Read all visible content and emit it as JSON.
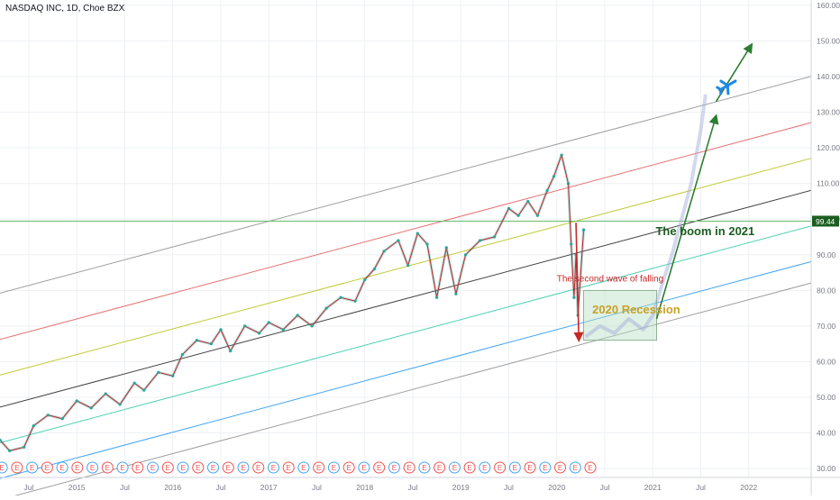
{
  "chart_data": {
    "type": "line",
    "title": "NASDAQ INC, 1D, Choe BZX",
    "xlabel": "",
    "ylabel": "",
    "xlim": [
      2014.2,
      2022.65
    ],
    "ylim": [
      27.5,
      161.5
    ],
    "y_ticks": [
      30,
      40,
      50,
      60,
      70,
      80,
      90,
      100,
      110,
      120,
      130,
      140,
      150,
      160
    ],
    "y_tick_labels": [
      "30.00",
      "40.00",
      "50.00",
      "60.00",
      "70.00",
      "80.00",
      "90.00",
      "100.00",
      "110.00",
      "120.00",
      "130.00",
      "140.00",
      "150.00",
      "160.00"
    ],
    "x_ticks": [
      {
        "label": "Jul",
        "x": 2014.5
      },
      {
        "label": "2015",
        "x": 2015.0
      },
      {
        "label": "Jul",
        "x": 2015.5
      },
      {
        "label": "2016",
        "x": 2016.0
      },
      {
        "label": "Jul",
        "x": 2016.5
      },
      {
        "label": "2017",
        "x": 2017.0
      },
      {
        "label": "Jul",
        "x": 2017.5
      },
      {
        "label": "2018",
        "x": 2018.0
      },
      {
        "label": "Jul",
        "x": 2018.5
      },
      {
        "label": "2019",
        "x": 2019.0
      },
      {
        "label": "Jul",
        "x": 2019.5
      },
      {
        "label": "2020",
        "x": 2020.0
      },
      {
        "label": "Jul",
        "x": 2020.5
      },
      {
        "label": "2021",
        "x": 2021.0
      },
      {
        "label": "Jul",
        "x": 2021.5
      },
      {
        "label": "2022",
        "x": 2022.0
      }
    ],
    "grid": true,
    "price_series": {
      "x": [
        2014.2,
        2014.3,
        2014.45,
        2014.55,
        2014.7,
        2014.85,
        2015.0,
        2015.15,
        2015.3,
        2015.45,
        2015.6,
        2015.7,
        2015.85,
        2016.0,
        2016.1,
        2016.25,
        2016.4,
        2016.5,
        2016.6,
        2016.75,
        2016.9,
        2017.0,
        2017.15,
        2017.3,
        2017.45,
        2017.6,
        2017.75,
        2017.9,
        2018.0,
        2018.1,
        2018.2,
        2018.35,
        2018.45,
        2018.55,
        2018.65,
        2018.75,
        2018.85,
        2018.95,
        2019.05,
        2019.2,
        2019.35,
        2019.5,
        2019.6,
        2019.7,
        2019.8,
        2019.9,
        2019.97,
        2020.05,
        2020.12,
        2020.15,
        2020.18,
        2020.2,
        2020.22,
        2020.28
      ],
      "y": [
        38,
        35,
        36,
        42,
        45,
        44,
        49,
        47,
        51,
        48,
        54,
        52,
        57,
        56,
        62,
        66,
        65,
        69,
        63,
        70,
        68,
        71,
        69,
        73,
        70,
        75,
        78,
        77,
        83,
        86,
        91,
        94,
        87,
        96,
        93,
        78,
        92,
        79,
        90,
        94,
        95,
        103,
        101,
        105,
        101,
        108,
        112,
        118,
        110,
        93,
        78,
        90,
        73,
        97
      ]
    },
    "projection_series": {
      "x": [
        2020.3,
        2020.45,
        2020.6,
        2020.75,
        2020.9,
        2021.0,
        2021.1,
        2021.2,
        2021.3,
        2021.4,
        2021.5,
        2021.55
      ],
      "y": [
        67,
        70,
        68,
        72,
        69,
        73,
        82,
        90,
        100,
        110,
        125,
        135
      ]
    },
    "channel": {
      "slope_per_year": 7.2,
      "ref_year": 2020,
      "lines": [
        {
          "color": "#9e9e9e",
          "value_at_ref": 121
        },
        {
          "color": "#e57373",
          "value_at_ref": 108
        },
        {
          "color": "#c0ca33",
          "value_at_ref": 98
        },
        {
          "color": "#424242",
          "value_at_ref": 89
        },
        {
          "color": "#4dd0b5",
          "value_at_ref": 79
        },
        {
          "color": "#42a5f5",
          "value_at_ref": 69
        },
        {
          "color": "#9e9e9e",
          "value_at_ref": 63
        }
      ]
    },
    "horizontal_line": {
      "value": 99.44,
      "label": "99.44",
      "color": "#66bb6a"
    },
    "annotations": [
      {
        "text": "The boom in 2021",
        "x": 2021.03,
        "y": 95.5,
        "color": "#1b5e20"
      },
      {
        "text": "The second wave of falling",
        "x": 2020.0,
        "y": 82.5,
        "color": "#c62828"
      },
      {
        "text": "2020 Recession",
        "x": 2020.37,
        "y": 73.5,
        "color": "#c9a227"
      }
    ],
    "arrows": [
      {
        "from": [
          2020.2,
          99
        ],
        "to": [
          2020.23,
          66
        ],
        "color": "#c62828"
      },
      {
        "from": [
          2021.04,
          72
        ],
        "to": [
          2021.66,
          129
        ],
        "color": "#2e7d32"
      },
      {
        "from": [
          2021.66,
          133
        ],
        "to": [
          2022.03,
          149
        ],
        "color": "#2e7d32"
      }
    ],
    "recession_box": {
      "x1": 2020.28,
      "x2": 2021.04,
      "y1": 66,
      "y2": 80,
      "color": "#b9e0c4"
    },
    "airplane": {
      "x": 2021.78,
      "y": 137.5,
      "color": "#1e88e5",
      "icon": "airplane-icon"
    },
    "earnings_marker": {
      "letter": "E",
      "count": 40,
      "x_start": 2014.22,
      "x_end": 2020.35
    }
  }
}
